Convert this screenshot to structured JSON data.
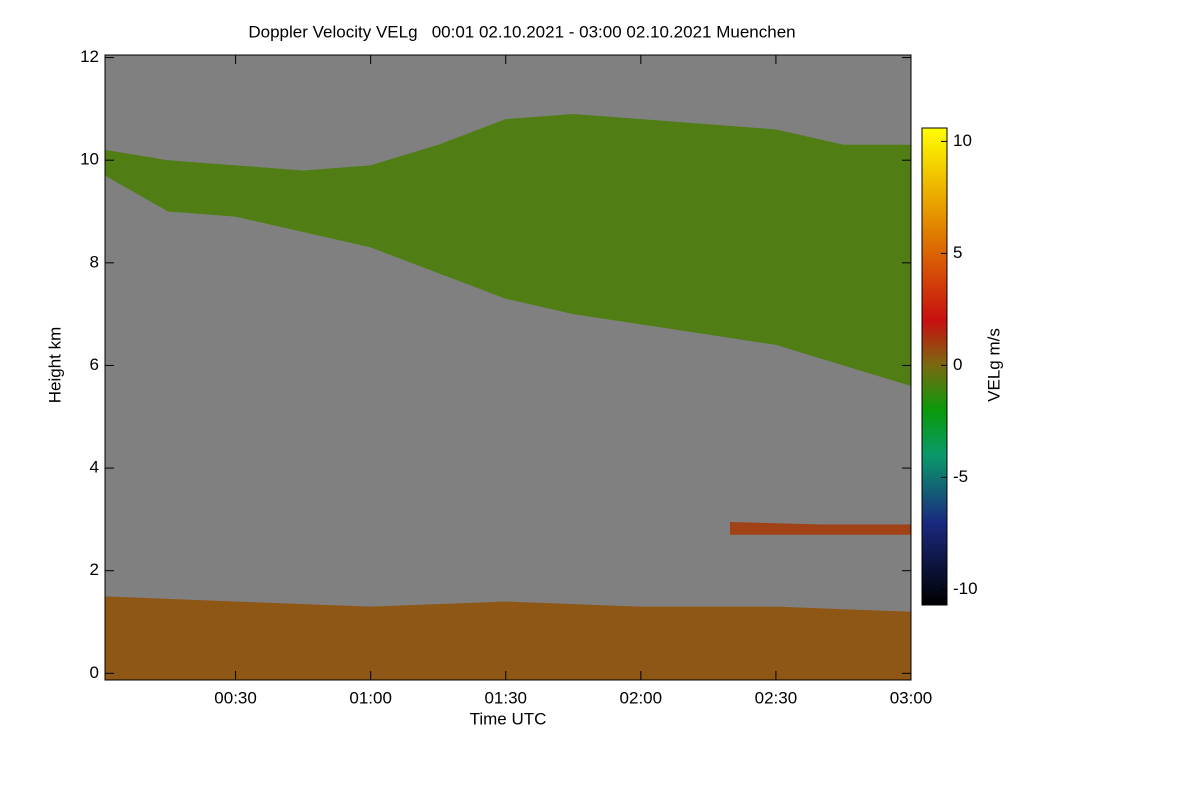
{
  "chart_data": {
    "type": "time-height",
    "title": "Doppler Velocity VELg   00:01 02.10.2021 - 03:00 02.10.2021 Muenchen",
    "xlabel": "Time UTC",
    "ylabel": "Height km",
    "xlim": [
      0.0167,
      3.0
    ],
    "xticks": [
      {
        "value": 0.5,
        "label": "00:30"
      },
      {
        "value": 1.0,
        "label": "01:00"
      },
      {
        "value": 1.5,
        "label": "01:30"
      },
      {
        "value": 2.0,
        "label": "02:00"
      },
      {
        "value": 2.5,
        "label": "02:30"
      },
      {
        "value": 3.0,
        "label": "03:00"
      }
    ],
    "ylim": [
      -0.13,
      12.05
    ],
    "yticks": [
      0,
      2,
      4,
      6,
      8,
      10,
      12
    ],
    "background": "#808080",
    "colorbar": {
      "label": "VELg m/s",
      "zlim": [
        -10.7,
        10.6
      ],
      "ticks": [
        -10,
        -5,
        0,
        5,
        10
      ],
      "colormap": [
        {
          "value": -10.7,
          "color": "#000000"
        },
        {
          "value": -7,
          "color": "#1a2a80"
        },
        {
          "value": -4,
          "color": "#0a9a6a"
        },
        {
          "value": -2,
          "color": "#0a9a0a"
        },
        {
          "value": 0,
          "color": "#7a6a10"
        },
        {
          "value": 2,
          "color": "#c81010"
        },
        {
          "value": 6,
          "color": "#e08000"
        },
        {
          "value": 10.6,
          "color": "#ffff00"
        }
      ]
    },
    "series": [
      {
        "x": [
          0.0167,
          0.25,
          0.5,
          0.75,
          1.0,
          1.25,
          1.5,
          1.75,
          2.0,
          2.25,
          2.5,
          2.75,
          3.0
        ],
        "values": [
          10.2,
          10.0,
          9.9,
          9.8,
          9.9,
          10.3,
          10.8,
          10.9,
          10.8,
          10.7,
          10.6,
          10.3,
          10.3
        ],
        "lower": [
          9.7,
          9.0,
          8.9,
          8.6,
          8.3,
          7.8,
          7.3,
          7.0,
          6.8,
          6.6,
          6.4,
          6.0,
          5.6
        ],
        "velocity": -0.8
      },
      {
        "x": [
          0.0167,
          0.5,
          1.0,
          1.5,
          2.0,
          2.5,
          3.0
        ],
        "values": [
          1.5,
          1.4,
          1.3,
          1.4,
          1.3,
          1.3,
          1.2
        ],
        "lower": [
          -0.13,
          -0.13,
          -0.13,
          -0.13,
          -0.13,
          -0.13,
          -0.13
        ],
        "velocity": 0.5
      },
      {
        "x": [
          2.33,
          2.67,
          3.0
        ],
        "values": [
          2.95,
          2.9,
          2.9
        ],
        "lower": [
          2.7,
          2.7,
          2.7
        ],
        "velocity": 1
      }
    ]
  }
}
